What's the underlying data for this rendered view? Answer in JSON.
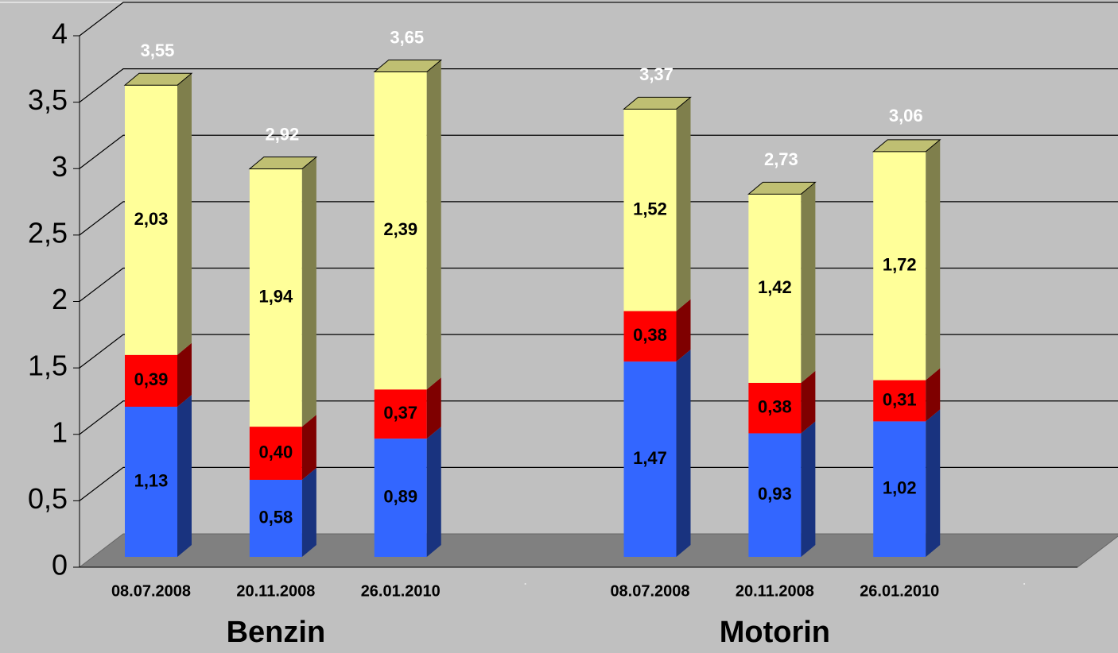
{
  "chart_data": {
    "type": "stacked-bar-3d",
    "categories": [
      "08.07.2008",
      "20.11.2008",
      "26.01.2010",
      null,
      "08.07.2008",
      "20.11.2008",
      "26.01.2010",
      null
    ],
    "groups": [
      "Benzin",
      "Motorin"
    ],
    "series": [
      {
        "color": "#3366ff",
        "values": [
          1.13,
          0.58,
          0.89,
          null,
          1.47,
          0.93,
          1.02,
          null
        ],
        "value_labels": [
          "1,13",
          "0,58",
          "0,89",
          null,
          "1,47",
          "0,93",
          "1,02",
          null
        ]
      },
      {
        "color": "#ff0000",
        "values": [
          0.39,
          0.4,
          0.37,
          null,
          0.38,
          0.38,
          0.31,
          null
        ],
        "value_labels": [
          "0,39",
          "0,40",
          "0,37",
          null,
          "0,38",
          "0,38",
          "0,31",
          null
        ]
      },
      {
        "color": "#ffff99",
        "values": [
          2.03,
          1.94,
          2.39,
          null,
          1.52,
          1.42,
          1.72,
          null
        ],
        "value_labels": [
          "2,03",
          "1,94",
          "2,39",
          null,
          "1,52",
          "1,42",
          "1,72",
          null
        ]
      }
    ],
    "totals": [
      3.55,
      2.92,
      3.65,
      null,
      3.37,
      2.73,
      3.06,
      null
    ],
    "total_labels": [
      "3,55",
      "2,92",
      "3,65",
      null,
      "3,37",
      "2,73",
      "3,06",
      null
    ],
    "ylim": [
      0,
      4
    ],
    "yticks": [
      0,
      {
        "value": 0.5,
        "label": "0,5"
      },
      1,
      {
        "value": 1.5,
        "label": "1,5"
      },
      2,
      {
        "value": 2.5,
        "label": "2,5"
      },
      3,
      {
        "value": 3.5,
        "label": "3,5"
      },
      4
    ],
    "grid": true
  }
}
